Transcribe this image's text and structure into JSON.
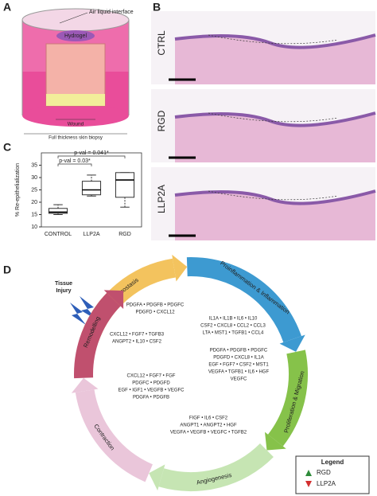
{
  "panel_labels": [
    "A",
    "B",
    "C",
    "D"
  ],
  "panel_a": {
    "labels": [
      "Air liquid interface",
      "Hydrogel",
      "Wound",
      "Full thickness skin biopsy"
    ]
  },
  "panel_b": {
    "rows": [
      "CTRL",
      "RGD",
      "LLP2A"
    ]
  },
  "chart_data": {
    "type": "box",
    "ylabel": "% Re-epithelialization",
    "categories": [
      "CONTROL",
      "LLP2A",
      "RGD"
    ],
    "boxes": [
      {
        "min": 15,
        "q1": 15.5,
        "median": 16,
        "q3": 17.5,
        "max": 19
      },
      {
        "min": 22.5,
        "q1": 23,
        "median": 25,
        "q3": 28.5,
        "max": 31
      },
      {
        "min": 18,
        "q1": 22,
        "median": 29,
        "q3": 32,
        "max": 32
      }
    ],
    "ylim": [
      10,
      40
    ],
    "yticks": [
      10,
      15,
      20,
      25,
      30,
      35
    ],
    "annotations": [
      "p-val = 0.041*",
      "p-val = 0.03*"
    ]
  },
  "panel_d": {
    "tissue_injury": [
      "Tissue",
      "Injury"
    ],
    "stages": [
      {
        "label": "Hemostasis",
        "color": "#f3c35e",
        "genes": [
          "PDGFA • PDGFB • PDGFC",
          "PDGFD • CXCL12"
        ]
      },
      {
        "label": "Proinflammation & Inflammation",
        "color": "#3d9ad1",
        "genes": [
          "IL1A • IL1B • IL6 • IL10",
          "CSF2 • CXCL8 • CCL2 • CCL3",
          "LTA • MST1 • TGFB1 • CCL4"
        ]
      },
      {
        "label": "Proliferation & Migration",
        "color": "#86c24a",
        "genes": [
          "PDGFA • PDGFB • PDGFC",
          "PDGFD • CXCL8 • IL1A",
          "EGF • FGF7 • CSF2 • MST1",
          "VEGFA • TGFB1 • IL6 • HGF",
          "VEGFC"
        ]
      },
      {
        "label": "Angiogenesis",
        "color": "#c6e5b3",
        "genes": [
          "FIGF • IL6 • CSF2",
          "ANGPT1 • ANGPT2 • HGF",
          "VEGFA • VEGFB • VEGFC • TGFB2"
        ]
      },
      {
        "label": "Contraction",
        "color": "#eac6da",
        "genes": [
          "CXCL12 • FGF7 • FGF",
          "PDGFC • PDGFD",
          "EGF • IGF1 • VEGFB • VEGFC",
          "PDGFA • PDGFB"
        ]
      },
      {
        "label": "Remodelling",
        "color": "#c0506e",
        "genes": [
          "CXCL12 • FGF7 • TGFB3",
          "ANGPT2 • IL10 • CSF2"
        ]
      }
    ],
    "legend": {
      "title": "Legend",
      "items": [
        {
          "name": "RGD",
          "color": "#2e8b3a"
        },
        {
          "name": "LLP2A",
          "color": "#d32f2f"
        }
      ]
    }
  }
}
